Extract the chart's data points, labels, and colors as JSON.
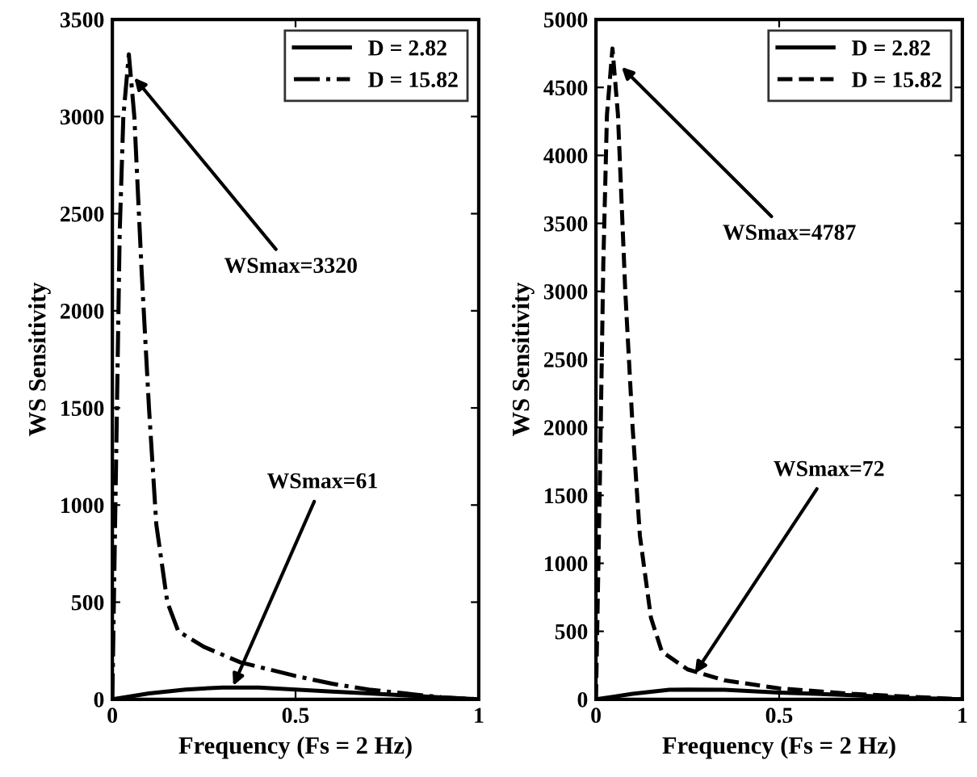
{
  "chart_data": [
    {
      "type": "line",
      "xlabel": "Frequency (Fs = 2 Hz)",
      "ylabel": "WS Sensitivity",
      "xlim": [
        0,
        1
      ],
      "ylim": [
        0,
        3500
      ],
      "xticks": [
        0,
        0.5,
        1
      ],
      "yticks": [
        0,
        500,
        1000,
        1500,
        2000,
        2500,
        3000,
        3500
      ],
      "grid": false,
      "legend": "top right",
      "marker": "none",
      "series": [
        {
          "name": "D = 2.82",
          "color": "#000000",
          "line_style": "solid",
          "x": [
            0,
            0.1,
            0.2,
            0.3,
            0.4,
            0.5,
            0.6,
            0.7,
            0.8,
            0.9,
            1
          ],
          "values": [
            0,
            30,
            50,
            61,
            60,
            50,
            40,
            30,
            20,
            10,
            0
          ]
        },
        {
          "name": "D = 15.82",
          "color": "#000000",
          "line_style": "dashdot",
          "x": [
            0,
            0.01,
            0.02,
            0.03,
            0.045,
            0.06,
            0.08,
            0.1,
            0.12,
            0.15,
            0.18,
            0.25,
            0.35,
            0.5,
            0.6,
            0.7,
            0.8,
            0.9,
            1
          ],
          "values": [
            0,
            1200,
            2400,
            3000,
            3320,
            3000,
            2200,
            1500,
            900,
            500,
            350,
            270,
            190,
            120,
            80,
            50,
            30,
            10,
            0
          ]
        }
      ],
      "annotations": [
        {
          "text": "WSmax=3320",
          "x": 0.06,
          "y": 3200
        },
        {
          "text": "WSmax=61",
          "x": 0.33,
          "y": 70
        }
      ]
    },
    {
      "type": "line",
      "xlabel": "Frequency (Fs = 2 Hz)",
      "ylabel": "WS Sensitivity",
      "xlim": [
        0,
        1
      ],
      "ylim": [
        0,
        5000
      ],
      "xticks": [
        0,
        0.5,
        1
      ],
      "yticks": [
        0,
        500,
        1000,
        1500,
        2000,
        2500,
        3000,
        3500,
        4000,
        4500,
        5000
      ],
      "grid": false,
      "legend": "top right",
      "marker": "none",
      "series": [
        {
          "name": "D = 2.82",
          "color": "#000000",
          "line_style": "solid",
          "x": [
            0,
            0.1,
            0.2,
            0.25,
            0.35,
            0.5,
            0.7,
            0.85,
            1
          ],
          "values": [
            0,
            40,
            70,
            72,
            70,
            50,
            30,
            10,
            0
          ]
        },
        {
          "name": "D = 15.82",
          "color": "#000000",
          "line_style": "dashed",
          "x": [
            0,
            0.01,
            0.02,
            0.03,
            0.045,
            0.06,
            0.08,
            0.1,
            0.12,
            0.15,
            0.18,
            0.25,
            0.35,
            0.5,
            0.7,
            0.85,
            1
          ],
          "values": [
            0,
            1500,
            3200,
            4300,
            4787,
            4300,
            3000,
            2000,
            1200,
            600,
            350,
            220,
            140,
            80,
            40,
            20,
            0
          ]
        }
      ],
      "annotations": [
        {
          "text": "WSmax=4787",
          "x": 0.07,
          "y": 4650
        },
        {
          "text": "WSmax=72",
          "x": 0.27,
          "y": 190
        }
      ]
    }
  ]
}
